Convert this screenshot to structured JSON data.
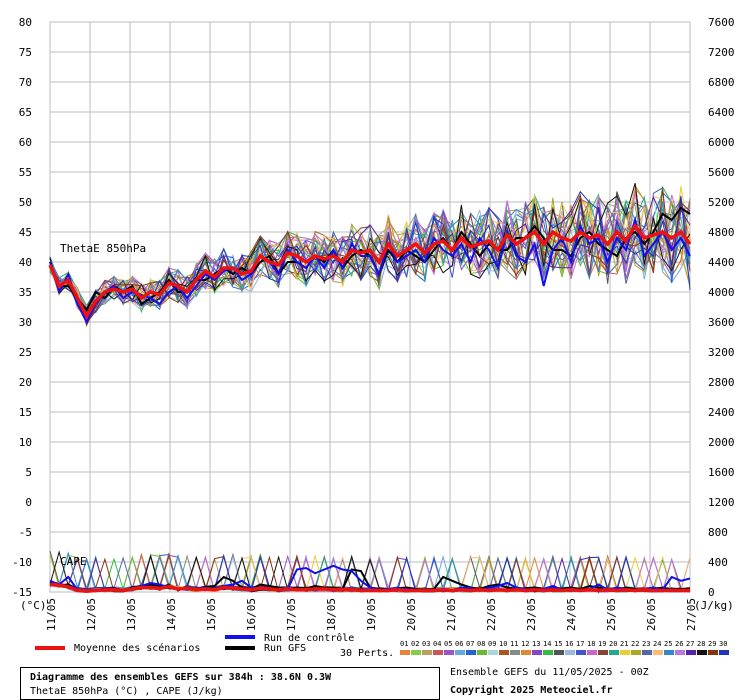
{
  "chart_data": {
    "type": "line",
    "y_left": {
      "ticks": [
        "80",
        "75",
        "70",
        "65",
        "60",
        "55",
        "50",
        "45",
        "40",
        "35",
        "30",
        "25",
        "20",
        "15",
        "10",
        "5",
        "0",
        "-5",
        "-10",
        "-15"
      ],
      "unit": "(°C)",
      "ylim": [
        -15,
        80
      ]
    },
    "y_right": {
      "ticks": [
        "7600",
        "7200",
        "6800",
        "6400",
        "6000",
        "5600",
        "5200",
        "4800",
        "4400",
        "4000",
        "3600",
        "3200",
        "2800",
        "2400",
        "2000",
        "1600",
        "1200",
        "800",
        "400",
        "0"
      ],
      "unit": "(J/kg)",
      "ylim": [
        0,
        7600
      ]
    },
    "x_labels": [
      "11/05",
      "12/05",
      "13/05",
      "14/05",
      "15/05",
      "16/05",
      "17/05",
      "18/05",
      "19/05",
      "20/05",
      "21/05",
      "22/05",
      "23/05",
      "24/05",
      "25/05",
      "26/05",
      "27/05"
    ],
    "annotations": {
      "thetae": "ThetaE 850hPa",
      "cape": "CAPE"
    },
    "legend": {
      "mean": "Moyenne des scénarios",
      "control": "Run de contrôle",
      "gfs": "Run GFS",
      "perts": "30 Perts.",
      "pert_numbers": [
        "01",
        "02",
        "03",
        "04",
        "05",
        "06",
        "07",
        "08",
        "09",
        "10",
        "11",
        "12",
        "13",
        "14",
        "15",
        "16",
        "17",
        "18",
        "19",
        "20",
        "21",
        "22",
        "23",
        "24",
        "25",
        "26",
        "27",
        "28",
        "29",
        "30"
      ]
    },
    "colors": {
      "mean": "#ee1111",
      "control": "#1010ee",
      "gfs": "#000000",
      "perts": [
        "#e8833a",
        "#88cc44",
        "#b8a060",
        "#cc5555",
        "#9955cc",
        "#66aadd",
        "#2266cc",
        "#66bb33",
        "#a8d8d8",
        "#aa5522",
        "#888888",
        "#dd8833",
        "#8844cc",
        "#33bb44",
        "#555555",
        "#99bbdd",
        "#4455cc",
        "#cc66cc",
        "#884433",
        "#22aa88",
        "#eecc33",
        "#aaaa22",
        "#5566aa",
        "#ffbb77",
        "#3388cc",
        "#bb77dd",
        "#5522aa",
        "#111111",
        "#883311",
        "#2233bb"
      ]
    },
    "series_thetae": {
      "mean": [
        39.5,
        36,
        37,
        34,
        31,
        33.5,
        35,
        35.5,
        35,
        35.5,
        34,
        35,
        34.5,
        36.5,
        36,
        35,
        37,
        38.5,
        37.5,
        39,
        39,
        38,
        38.5,
        41,
        40,
        39.5,
        41.5,
        41,
        40,
        41,
        40.5,
        41,
        40,
        42,
        41.5,
        42,
        40,
        43,
        41,
        42,
        43,
        41.5,
        43,
        43.5,
        42,
        44,
        42.5,
        43,
        43.5,
        42,
        44.5,
        43,
        44,
        45,
        43,
        45,
        44,
        43.5,
        45,
        44,
        44.5,
        43,
        45,
        43.5,
        46,
        44,
        44.5,
        45,
        44,
        45,
        43
      ],
      "control": [
        40,
        35,
        38,
        33,
        30,
        33,
        35,
        36,
        34,
        35,
        34.5,
        34,
        33,
        35,
        36,
        34,
        36,
        38,
        37,
        38.5,
        39,
        37,
        38,
        41,
        40,
        38,
        42,
        40,
        39,
        41,
        39,
        42,
        39,
        43,
        41,
        41,
        38,
        43,
        40,
        41,
        42,
        40,
        44,
        42,
        41,
        43,
        40,
        44,
        42,
        39,
        45,
        41,
        40,
        43,
        36,
        42,
        44,
        40,
        46,
        43,
        44,
        40,
        44,
        42,
        47,
        41,
        43,
        45,
        42,
        44,
        41
      ],
      "gfs": [
        40,
        36,
        36,
        34,
        32,
        35,
        34,
        36,
        35,
        36,
        33,
        34,
        35,
        37,
        35,
        35,
        37,
        37,
        38,
        39,
        38,
        39,
        38,
        40,
        41,
        38,
        40,
        40,
        39,
        41,
        40,
        42,
        39,
        41,
        42,
        41,
        38,
        42,
        40,
        42,
        41,
        40,
        42,
        44,
        42,
        45,
        43,
        41,
        43,
        42,
        42,
        44,
        44,
        46,
        44,
        42,
        42,
        41,
        44,
        45,
        43,
        42,
        41,
        44,
        45,
        43,
        45,
        48,
        47,
        49,
        48
      ]
    },
    "series_cape": {
      "mean": [
        100,
        90,
        70,
        20,
        10,
        20,
        30,
        30,
        20,
        40,
        60,
        60,
        50,
        70,
        40,
        50,
        30,
        40,
        30,
        60,
        50,
        40,
        30,
        50,
        40,
        30,
        40,
        30,
        30,
        40,
        40,
        30,
        30,
        30,
        20,
        20,
        20,
        20,
        30,
        20,
        20,
        20,
        20,
        30,
        20,
        30,
        20,
        30,
        20,
        30,
        20,
        30,
        20,
        30,
        20,
        30,
        20,
        30,
        20,
        30,
        20,
        30,
        20,
        30,
        20,
        30,
        20,
        20,
        20,
        20,
        20
      ],
      "control": [
        150,
        100,
        200,
        30,
        10,
        20,
        30,
        40,
        30,
        50,
        80,
        120,
        100,
        60,
        40,
        30,
        50,
        60,
        40,
        80,
        100,
        150,
        60,
        40,
        30,
        30,
        40,
        300,
        320,
        250,
        300,
        350,
        300,
        280,
        150,
        60,
        30,
        40,
        50,
        40,
        30,
        20,
        20,
        40,
        30,
        60,
        50,
        20,
        60,
        80,
        120,
        60,
        40,
        30,
        40,
        80,
        30,
        40,
        20,
        40,
        100,
        30,
        60,
        40,
        20,
        40,
        60,
        30,
        200,
        150,
        180
      ],
      "gfs": [
        120,
        80,
        100,
        20,
        10,
        20,
        40,
        50,
        30,
        60,
        80,
        100,
        80,
        50,
        40,
        60,
        40,
        70,
        80,
        200,
        150,
        60,
        40,
        100,
        80,
        60,
        40,
        60,
        50,
        80,
        60,
        60,
        40,
        300,
        280,
        60,
        40,
        30,
        50,
        60,
        40,
        30,
        40,
        200,
        150,
        100,
        60,
        40,
        80,
        100,
        60,
        40,
        50,
        60,
        40,
        30,
        40,
        60,
        40,
        80,
        60,
        40,
        30,
        60,
        40,
        20,
        40,
        60,
        30,
        40,
        50
      ]
    },
    "title_box": {
      "line1": "Diagramme des ensembles GEFS sur 384h : 38.6N 0.3W",
      "line2": "ThetaE 850hPa (°C) , CAPE (J/kg)"
    },
    "credit": {
      "line1": "Ensemble GEFS du 11/05/2025 - 00Z",
      "line2": "Copyright 2025 Meteociel.fr"
    }
  }
}
